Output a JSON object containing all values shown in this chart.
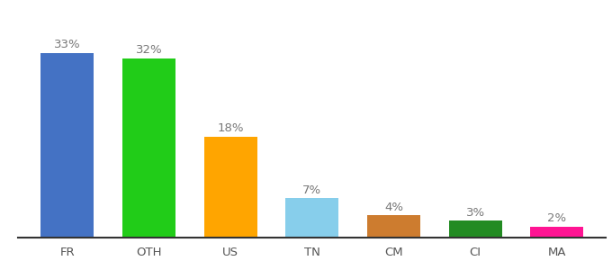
{
  "categories": [
    "FR",
    "OTH",
    "US",
    "TN",
    "CM",
    "CI",
    "MA"
  ],
  "values": [
    33,
    32,
    18,
    7,
    4,
    3,
    2
  ],
  "bar_colors": [
    "#4472C4",
    "#21CC18",
    "#FFA500",
    "#87CEEB",
    "#CD7C2F",
    "#228B22",
    "#FF1493"
  ],
  "labels": [
    "33%",
    "32%",
    "18%",
    "7%",
    "4%",
    "3%",
    "2%"
  ],
  "ylim": [
    0,
    40
  ],
  "label_fontsize": 9.5,
  "tick_fontsize": 9.5,
  "bar_width": 0.65,
  "label_color": "#777777",
  "tick_color": "#555555",
  "background_color": "#ffffff"
}
